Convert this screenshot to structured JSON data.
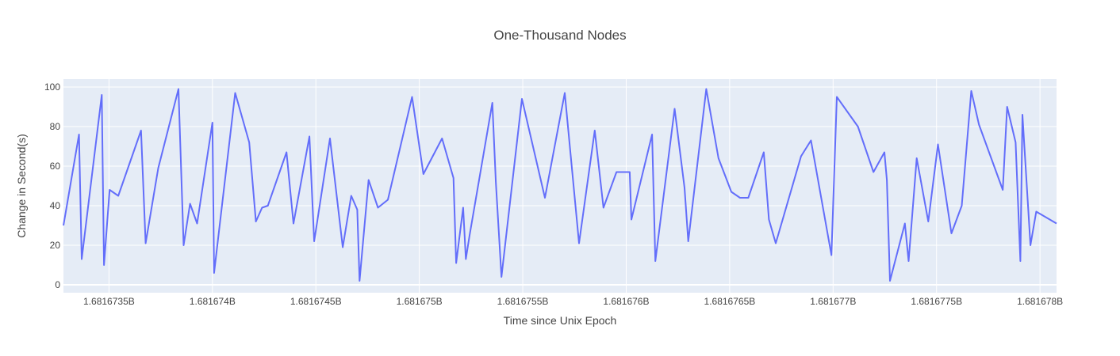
{
  "chart_data": {
    "type": "line",
    "title": "One-Thousand Nodes",
    "xlabel": "Time since Unix Epoch",
    "ylabel": "Change in Second(s)",
    "xlim": [
      1681673280,
      1681678080
    ],
    "ylim": [
      -4,
      104
    ],
    "x_tick_values": [
      1681673500,
      1681674000,
      1681674500,
      1681675000,
      1681675500,
      1681676000,
      1681676500,
      1681677000,
      1681677500,
      1681678000
    ],
    "x_tick_labels": [
      "1.6816735B",
      "1.681674B",
      "1.6816745B",
      "1.681675B",
      "1.6816755B",
      "1.681676B",
      "1.6816765B",
      "1.681677B",
      "1.6816775B",
      "1.681678B"
    ],
    "y_tick_values": [
      0,
      20,
      40,
      60,
      80,
      100
    ],
    "y_tick_labels": [
      "0",
      "20",
      "40",
      "60",
      "80",
      "100"
    ],
    "grid": true,
    "legend": "none",
    "series": [
      {
        "color": "#636efa",
        "x": [
          1681673280,
          1681673355,
          1681673368,
          1681673465,
          1681673476,
          1681673503,
          1681673545,
          1681673655,
          1681673677,
          1681673738,
          1681673836,
          1681673861,
          1681673892,
          1681673926,
          1681674000,
          1681674008,
          1681674110,
          1681674178,
          1681674210,
          1681674240,
          1681674268,
          1681674358,
          1681674392,
          1681674469,
          1681674492,
          1681674568,
          1681674630,
          1681674671,
          1681674700,
          1681674711,
          1681674755,
          1681674800,
          1681674848,
          1681674965,
          1681675020,
          1681675110,
          1681675165,
          1681675178,
          1681675212,
          1681675225,
          1681675243,
          1681675353,
          1681675370,
          1681675397,
          1681675496,
          1681675607,
          1681675703,
          1681675772,
          1681675848,
          1681675890,
          1681675953,
          1681676017,
          1681676025,
          1681676125,
          1681676141,
          1681676234,
          1681676282,
          1681676300,
          1681676387,
          1681676446,
          1681676508,
          1681676550,
          1681676590,
          1681676665,
          1681676690,
          1681676723,
          1681676845,
          1681676893,
          1681676992,
          1681677018,
          1681677120,
          1681677195,
          1681677248,
          1681677260,
          1681677275,
          1681677347,
          1681677365,
          1681677404,
          1681677460,
          1681677507,
          1681677572,
          1681677622,
          1681677668,
          1681677705,
          1681677820,
          1681677841,
          1681677882,
          1681677905,
          1681677915,
          1681677954,
          1681677982,
          1681678080
        ],
        "y": [
          30,
          76,
          13,
          96,
          10,
          48,
          45,
          78,
          21,
          59,
          99,
          20,
          41,
          31,
          82,
          6,
          97,
          72,
          32,
          39,
          40,
          67,
          31,
          75,
          22,
          74,
          19,
          45,
          38,
          2,
          53,
          39,
          43,
          95,
          56,
          74,
          54,
          11,
          39,
          13,
          25,
          92,
          52,
          4,
          94,
          44,
          97,
          21,
          78,
          39,
          57,
          57,
          33,
          76,
          12,
          89,
          49,
          22,
          99,
          64,
          47,
          44,
          44,
          67,
          33,
          21,
          65,
          73,
          15,
          95,
          80,
          57,
          67,
          53,
          2,
          31,
          12,
          64,
          32,
          71,
          26,
          40,
          98,
          81,
          48,
          90,
          72,
          12,
          86,
          20,
          37,
          31
        ]
      }
    ]
  }
}
